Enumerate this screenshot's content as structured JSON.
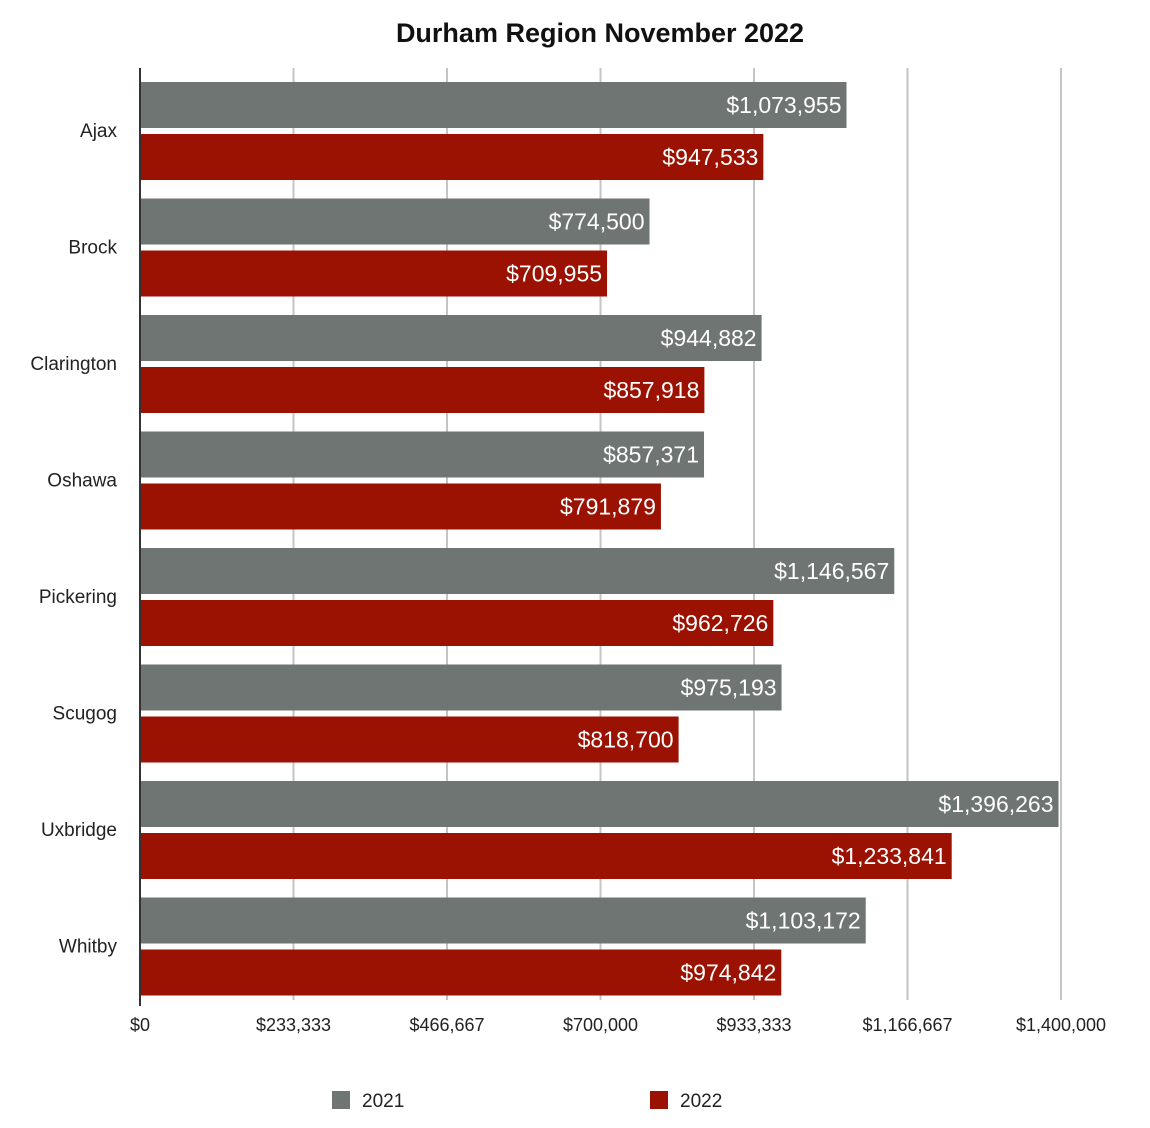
{
  "chart_data": {
    "type": "bar",
    "orientation": "horizontal",
    "title": "Durham Region November 2022",
    "categories": [
      "Ajax",
      "Brock",
      "Clarington",
      "Oshawa",
      "Pickering",
      "Scugog",
      "Uxbridge",
      "Whitby"
    ],
    "series": [
      {
        "name": "2021",
        "color": "#6e7572",
        "values": [
          1073955,
          774500,
          944882,
          857371,
          1146567,
          975193,
          1396263,
          1103172
        ],
        "labels": [
          "$1,073,955",
          "$774,500",
          "$944,882",
          "$857,371",
          "$1,146,567",
          "$975,193",
          "$1,396,263",
          "$1,103,172"
        ]
      },
      {
        "name": "2022",
        "color": "#9b1203",
        "values": [
          947533,
          709955,
          857918,
          791879,
          962726,
          818700,
          1233841,
          974842
        ],
        "labels": [
          "$947,533",
          "$709,955",
          "$857,918",
          "$791,879",
          "$962,726",
          "$818,700",
          "$1,233,841",
          "$974,842"
        ]
      }
    ],
    "xlim": [
      0,
      1400000
    ],
    "xticks": [
      0,
      233333,
      466667,
      700000,
      933333,
      1166667,
      1400000
    ],
    "xtick_labels": [
      "$0",
      "$233,333",
      "$466,667",
      "$700,000",
      "$933,333",
      "$1,166,667",
      "$1,400,000"
    ],
    "grid": true,
    "legend": "bottom"
  }
}
